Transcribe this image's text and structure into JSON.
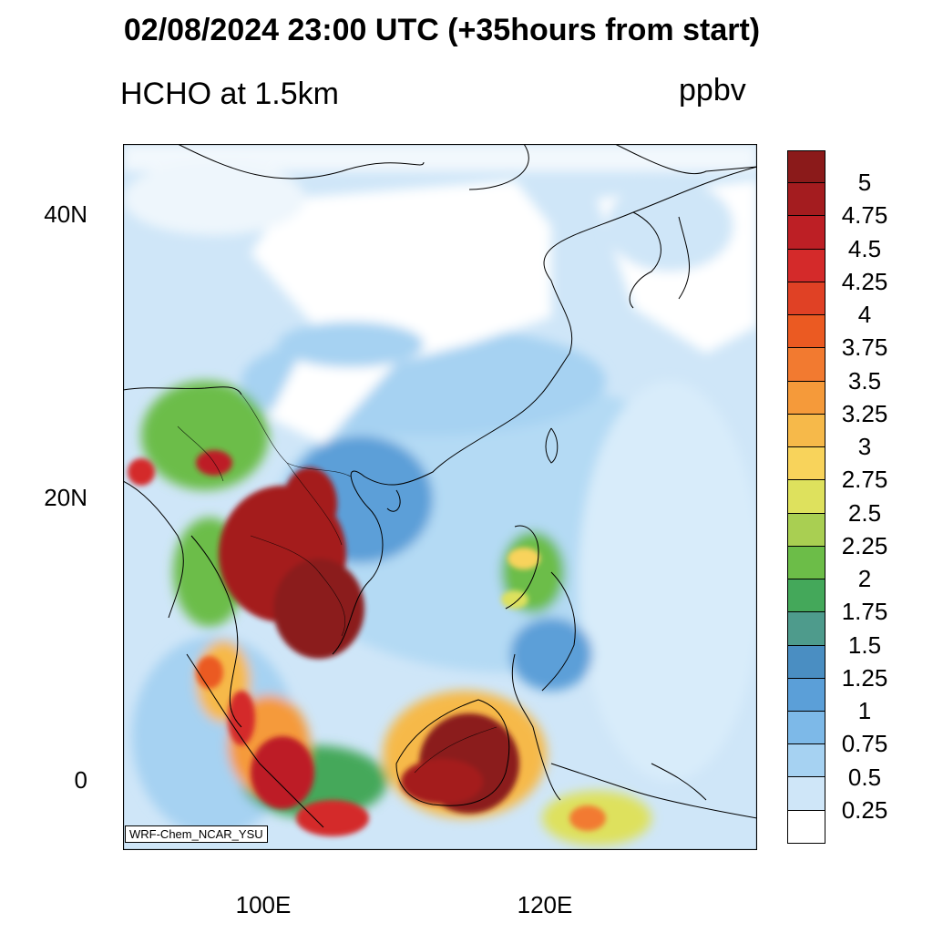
{
  "title": "02/08/2024 23:00 UTC (+35hours from start)",
  "variable_label": "HCHO at 1.5km",
  "units": "ppbv",
  "model_label": "WRF-Chem_NCAR_YSU",
  "lat_labels": [
    "40N",
    "20N",
    "0"
  ],
  "lon_labels": [
    "100E",
    "120E"
  ],
  "colorbar": {
    "labels": [
      "5",
      "4.75",
      "4.5",
      "4.25",
      "4",
      "3.75",
      "3.5",
      "3.25",
      "3",
      "2.75",
      "2.5",
      "2.25",
      "2",
      "1.75",
      "1.5",
      "1.25",
      "1",
      "0.75",
      "0.5",
      "0.25"
    ],
    "colors": [
      "#8b1a1a",
      "#a41c1f",
      "#bd1f25",
      "#d42a2a",
      "#e04125",
      "#eb5a22",
      "#f27a30",
      "#f59a3a",
      "#f6b94a",
      "#f8d35b",
      "#dee15d",
      "#a9cf52",
      "#6cbd48",
      "#44a85a",
      "#4e9b8c",
      "#4a8ec2",
      "#5b9fd8",
      "#7db9e8",
      "#a6d2f2",
      "#cfe6f8",
      "#ffffff"
    ]
  }
}
